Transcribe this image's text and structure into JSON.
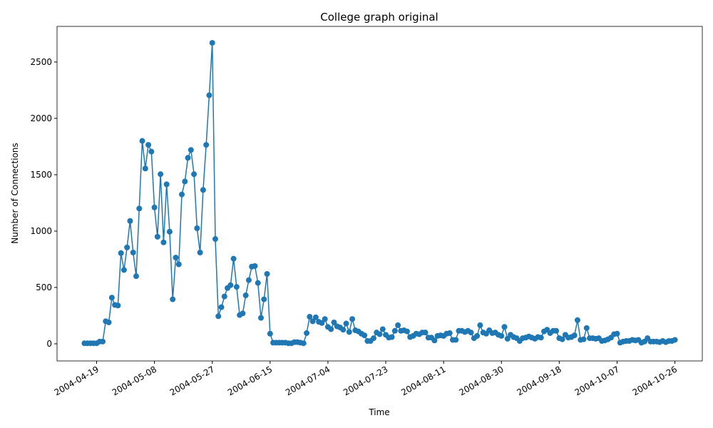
{
  "chart_data": {
    "type": "line",
    "title": "College graph original",
    "xlabel": "Time",
    "ylabel": "Number of Connections",
    "color": "#1f77b4",
    "marker": "circle",
    "x": [
      "2004-04-15",
      "2004-04-16",
      "2004-04-17",
      "2004-04-18",
      "2004-04-19",
      "2004-04-20",
      "2004-04-21",
      "2004-04-22",
      "2004-04-23",
      "2004-04-24",
      "2004-04-25",
      "2004-04-26",
      "2004-04-27",
      "2004-04-28",
      "2004-04-29",
      "2004-04-30",
      "2004-05-01",
      "2004-05-02",
      "2004-05-03",
      "2004-05-04",
      "2004-05-05",
      "2004-05-06",
      "2004-05-07",
      "2004-05-08",
      "2004-05-09",
      "2004-05-10",
      "2004-05-11",
      "2004-05-12",
      "2004-05-13",
      "2004-05-14",
      "2004-05-15",
      "2004-05-16",
      "2004-05-17",
      "2004-05-18",
      "2004-05-19",
      "2004-05-20",
      "2004-05-21",
      "2004-05-22",
      "2004-05-23",
      "2004-05-24",
      "2004-05-25",
      "2004-05-26",
      "2004-05-27",
      "2004-05-28",
      "2004-05-29",
      "2004-05-30",
      "2004-05-31",
      "2004-06-01",
      "2004-06-02",
      "2004-06-03",
      "2004-06-04",
      "2004-06-05",
      "2004-06-06",
      "2004-06-07",
      "2004-06-08",
      "2004-06-09",
      "2004-06-10",
      "2004-06-11",
      "2004-06-12",
      "2004-06-13",
      "2004-06-14",
      "2004-06-15",
      "2004-06-16",
      "2004-06-17",
      "2004-06-18",
      "2004-06-19",
      "2004-06-20",
      "2004-06-21",
      "2004-06-22",
      "2004-06-23",
      "2004-06-24",
      "2004-06-25",
      "2004-06-26",
      "2004-06-27",
      "2004-06-28",
      "2004-06-29",
      "2004-06-30",
      "2004-07-01",
      "2004-07-02",
      "2004-07-03",
      "2004-07-04",
      "2004-07-05",
      "2004-07-06",
      "2004-07-07",
      "2004-07-08",
      "2004-07-09",
      "2004-07-10",
      "2004-07-11",
      "2004-07-12",
      "2004-07-13",
      "2004-07-14",
      "2004-07-15",
      "2004-07-16",
      "2004-07-17",
      "2004-07-18",
      "2004-07-19",
      "2004-07-20",
      "2004-07-21",
      "2004-07-22",
      "2004-07-23",
      "2004-07-24",
      "2004-07-25",
      "2004-07-26",
      "2004-07-27",
      "2004-07-28",
      "2004-07-29",
      "2004-07-30",
      "2004-07-31",
      "2004-08-01",
      "2004-08-02",
      "2004-08-03",
      "2004-08-04",
      "2004-08-05",
      "2004-08-06",
      "2004-08-07",
      "2004-08-08",
      "2004-08-09",
      "2004-08-10",
      "2004-08-11",
      "2004-08-12",
      "2004-08-13",
      "2004-08-14",
      "2004-08-15",
      "2004-08-16",
      "2004-08-17",
      "2004-08-18",
      "2004-08-19",
      "2004-08-20",
      "2004-08-21",
      "2004-08-22",
      "2004-08-23",
      "2004-08-24",
      "2004-08-25",
      "2004-08-26",
      "2004-08-27",
      "2004-08-28",
      "2004-08-29",
      "2004-08-30",
      "2004-08-31",
      "2004-09-01",
      "2004-09-02",
      "2004-09-03",
      "2004-09-04",
      "2004-09-05",
      "2004-09-06",
      "2004-09-07",
      "2004-09-08",
      "2004-09-09",
      "2004-09-10",
      "2004-09-11",
      "2004-09-12",
      "2004-09-13",
      "2004-09-14",
      "2004-09-15",
      "2004-09-16",
      "2004-09-17",
      "2004-09-18",
      "2004-09-19",
      "2004-09-20",
      "2004-09-21",
      "2004-09-22",
      "2004-09-23",
      "2004-09-24",
      "2004-09-25",
      "2004-09-26",
      "2004-09-27",
      "2004-09-28",
      "2004-09-29",
      "2004-09-30",
      "2004-10-01",
      "2004-10-02",
      "2004-10-03",
      "2004-10-04",
      "2004-10-05",
      "2004-10-06",
      "2004-10-07",
      "2004-10-08",
      "2004-10-09",
      "2004-10-10",
      "2004-10-11",
      "2004-10-12",
      "2004-10-13",
      "2004-10-14",
      "2004-10-15",
      "2004-10-16",
      "2004-10-17",
      "2004-10-18",
      "2004-10-19",
      "2004-10-20",
      "2004-10-21",
      "2004-10-22",
      "2004-10-23",
      "2004-10-24",
      "2004-10-25",
      "2004-10-26"
    ],
    "values": [
      5,
      5,
      5,
      5,
      5,
      20,
      20,
      200,
      190,
      410,
      345,
      340,
      805,
      655,
      855,
      1090,
      810,
      600,
      1200,
      1800,
      1555,
      1765,
      1705,
      1210,
      950,
      1505,
      900,
      1415,
      995,
      395,
      765,
      705,
      1325,
      1440,
      1650,
      1720,
      1505,
      1025,
      810,
      1365,
      1765,
      2205,
      2670,
      930,
      245,
      325,
      420,
      495,
      520,
      755,
      505,
      255,
      270,
      430,
      565,
      685,
      690,
      540,
      230,
      395,
      620,
      90,
      10,
      10,
      10,
      10,
      10,
      5,
      5,
      15,
      15,
      10,
      5,
      95,
      240,
      200,
      235,
      195,
      185,
      220,
      150,
      130,
      190,
      155,
      145,
      125,
      180,
      105,
      220,
      120,
      110,
      90,
      75,
      25,
      25,
      50,
      100,
      85,
      130,
      80,
      55,
      60,
      115,
      165,
      115,
      120,
      110,
      60,
      70,
      90,
      85,
      100,
      100,
      55,
      55,
      30,
      70,
      75,
      70,
      90,
      95,
      35,
      35,
      115,
      115,
      105,
      115,
      100,
      50,
      70,
      165,
      100,
      90,
      120,
      95,
      100,
      80,
      70,
      150,
      45,
      80,
      60,
      50,
      25,
      50,
      55,
      65,
      55,
      45,
      60,
      55,
      110,
      125,
      95,
      115,
      115,
      50,
      40,
      80,
      55,
      60,
      75,
      210,
      35,
      40,
      140,
      50,
      50,
      45,
      50,
      25,
      30,
      40,
      55,
      85,
      90,
      10,
      20,
      25,
      25,
      35,
      30,
      35,
      10,
      20,
      50,
      20,
      20,
      20,
      15,
      25,
      15,
      25,
      25,
      35
    ],
    "xlim": [
      "2004-04-06",
      "2004-11-04"
    ],
    "xticks": [
      "2004-04-19",
      "2004-05-08",
      "2004-05-27",
      "2004-06-15",
      "2004-07-04",
      "2004-07-23",
      "2004-08-11",
      "2004-08-30",
      "2004-09-18",
      "2004-10-07",
      "2004-10-26"
    ],
    "ylim": [
      -152,
      2816
    ],
    "yticks": [
      0,
      500,
      1000,
      1500,
      2000,
      2500
    ],
    "grid": false
  }
}
